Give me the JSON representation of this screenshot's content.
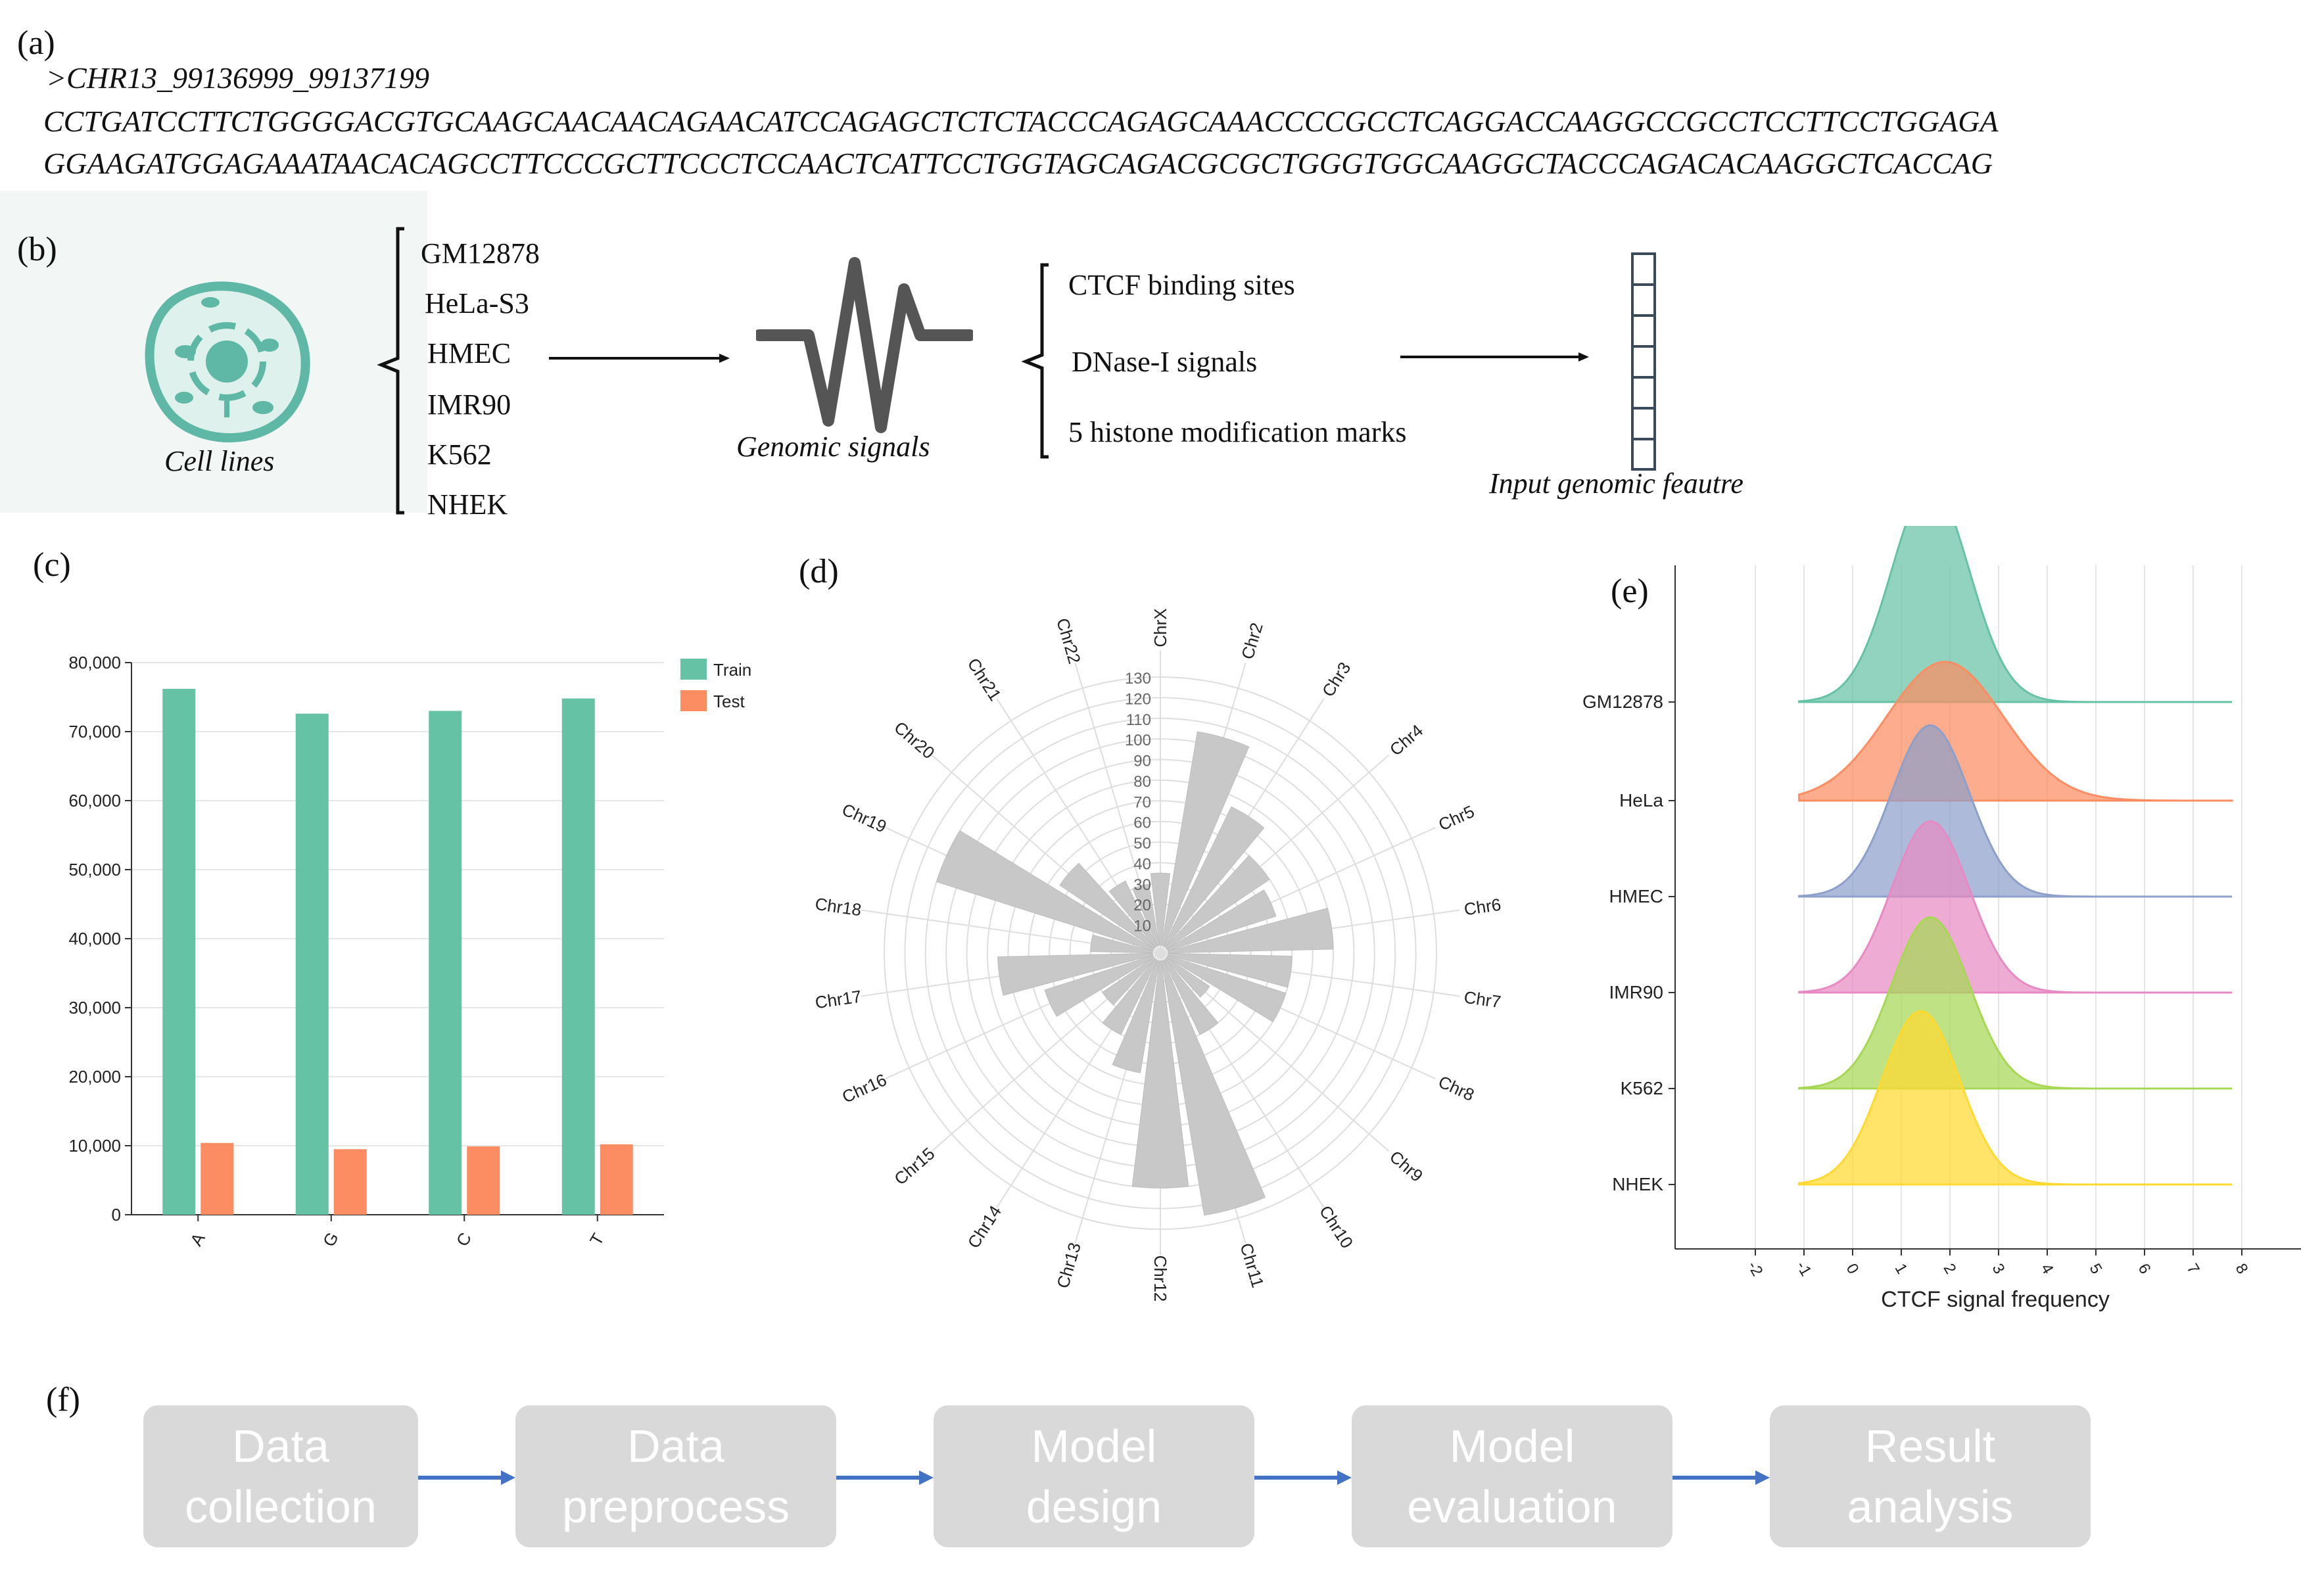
{
  "panels": {
    "a": {
      "label": "(a)",
      "header": ">CHR13_99136999_99137199",
      "line1": "CCTGATCCTTCTGGGGACGTGCAAGCAACAACAGAACATCCAGAGCTCTCTACCCAGAGCAAACCCCGCCTCAGGACCAAGGCCGCCTCCTTCCTGGAGA",
      "line2": "GGAAGATGGAGAAATAACACAGCCTTCCCGCTTCCCTCCAACTCATTCCTGGTAGCAGACGCGCTGGGTGGCAAGGCTACCCAGACACAAGGCTCACCAG"
    },
    "b": {
      "label": "(b)",
      "cell_caption": "Cell lines",
      "cell_lines": [
        "GM12878",
        "HeLa-S3",
        "HMEC",
        "IMR90",
        "K562",
        "NHEK"
      ],
      "signal_caption": "Genomic signals",
      "signals": [
        "CTCF binding sites",
        "DNase-I signals",
        "5 histone modification marks"
      ],
      "feature_caption": "Input genomic feautre"
    },
    "c": {
      "label": "(c)"
    },
    "d": {
      "label": "(d)"
    },
    "e": {
      "label": "(e)"
    },
    "f": {
      "label": "(f)",
      "steps": [
        {
          "line1": "Data",
          "line2": "collection"
        },
        {
          "line1": "Data",
          "line2": "preprocess"
        },
        {
          "line1": "Model",
          "line2": "design"
        },
        {
          "line1": "Model",
          "line2": "evaluation"
        },
        {
          "line1": "Result",
          "line2": "analysis"
        }
      ]
    }
  },
  "colors": {
    "train": "#66c2a5",
    "test": "#fc8d62",
    "polar_bar": "#c8c8c8",
    "flow_box": "#d9d9d9",
    "arrow_blue": "#4472c4",
    "cell_teal": "#5fb8a6"
  },
  "chart_data": [
    {
      "type": "bar",
      "categories": [
        "A",
        "G",
        "C",
        "T"
      ],
      "series": [
        {
          "name": "Train",
          "values": [
            76200,
            72600,
            73000,
            74800
          ]
        },
        {
          "name": "Test",
          "values": [
            10400,
            9500,
            9900,
            10200
          ]
        }
      ],
      "ylim": [
        0,
        80000
      ],
      "yticks": [
        0,
        10000,
        20000,
        30000,
        40000,
        50000,
        60000,
        70000,
        80000
      ],
      "ytick_labels": [
        "0",
        "10,000",
        "20,000",
        "30,000",
        "40,000",
        "50,000",
        "60,000",
        "70,000",
        "80,000"
      ],
      "legend": "top-right",
      "grid": true
    },
    {
      "type": "bar",
      "subtype": "polar",
      "categories": [
        "ChrX",
        "Chr2",
        "Chr3",
        "Chr4",
        "Chr5",
        "Chr6",
        "Chr7",
        "Chr8",
        "Chr9",
        "Chr10",
        "Chr11",
        "Chr12",
        "Chr13",
        "Chr14",
        "Chr15",
        "Chr16",
        "Chr17",
        "Chr18",
        "Chr19",
        "Chr20",
        "Chr21",
        "Chr22"
      ],
      "values": [
        35,
        105,
        75,
        60,
        55,
        80,
        60,
        60,
        25,
        40,
        125,
        110,
        55,
        40,
        30,
        55,
        75,
        30,
        110,
        55,
        35,
        30
      ],
      "rlim": [
        0,
        130
      ],
      "rticks": [
        10,
        20,
        30,
        40,
        50,
        60,
        70,
        80,
        90,
        100,
        110,
        120,
        130
      ],
      "grid": true
    },
    {
      "type": "area",
      "subtype": "ridgeline",
      "xlabel": "CTCF signal frequency",
      "xlim": [
        -2,
        8
      ],
      "xticks": [
        -2,
        -1,
        0,
        1,
        2,
        3,
        4,
        5,
        6,
        7,
        8
      ],
      "series": [
        {
          "name": "GM12878",
          "mean": 1.6,
          "sd": 0.8,
          "peak": 1.0,
          "color": "#66c2a5"
        },
        {
          "name": "HeLa",
          "mean": 1.9,
          "sd": 1.2,
          "peak": 0.64,
          "color": "#fc8d62"
        },
        {
          "name": "HMEC",
          "mean": 1.6,
          "sd": 0.8,
          "peak": 0.79,
          "color": "#8da0cb"
        },
        {
          "name": "IMR90",
          "mean": 1.6,
          "sd": 0.8,
          "peak": 0.79,
          "color": "#e78ac3"
        },
        {
          "name": "K562",
          "mean": 1.6,
          "sd": 0.8,
          "peak": 0.79,
          "color": "#a6d854"
        },
        {
          "name": "NHEK",
          "mean": 1.4,
          "sd": 0.8,
          "peak": 0.8,
          "color": "#ffd92f"
        }
      ],
      "grid": true
    }
  ]
}
